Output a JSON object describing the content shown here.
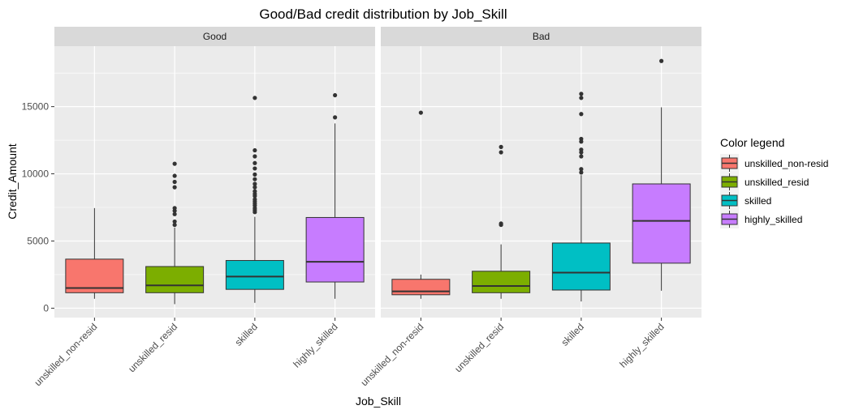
{
  "chart_data": {
    "type": "box",
    "title": "Good/Bad credit distribution by Job_Skill",
    "xlabel": "Job_Skill",
    "ylabel": "Credit_Amount",
    "ylim": [
      -700,
      19500
    ],
    "y_ticks": [
      0,
      5000,
      10000,
      15000
    ],
    "categories": [
      "unskilled_non-resid",
      "unskilled_resid",
      "skilled",
      "highly_skilled"
    ],
    "colors": [
      "#F8766D",
      "#7CAE00",
      "#00BFC4",
      "#C77CFF"
    ],
    "legend": {
      "title": "Color legend",
      "position": "right",
      "items": [
        "unskilled_non-resid",
        "unskilled_resid",
        "skilled",
        "highly_skilled"
      ]
    },
    "grid": true,
    "facets": [
      {
        "label": "Good",
        "boxes": [
          {
            "min": 700,
            "q1": 1150,
            "median": 1500,
            "q3": 3650,
            "max": 7450,
            "outliers": []
          },
          {
            "min": 300,
            "q1": 1150,
            "median": 1700,
            "q3": 3100,
            "max": 6000,
            "outliers": [
              6200,
              6450,
              7000,
              7250,
              7450,
              9000,
              9400,
              9850,
              10750
            ]
          },
          {
            "min": 400,
            "q1": 1400,
            "median": 2350,
            "q3": 3550,
            "max": 6800,
            "outliers": [
              7150,
              7300,
              7450,
              7650,
              7800,
              7950,
              8100,
              8350,
              8500,
              8700,
              9000,
              9250,
              9600,
              9950,
              10400,
              10800,
              11300,
              11750,
              15650
            ]
          },
          {
            "min": 700,
            "q1": 1950,
            "median": 3450,
            "q3": 6750,
            "max": 13750,
            "outliers": [
              14200,
              15850
            ]
          }
        ]
      },
      {
        "label": "Bad",
        "boxes": [
          {
            "min": 700,
            "q1": 1000,
            "median": 1250,
            "q3": 2150,
            "max": 2500,
            "outliers": [
              14550
            ]
          },
          {
            "min": 700,
            "q1": 1150,
            "median": 1650,
            "q3": 2750,
            "max": 4750,
            "outliers": [
              6200,
              6300,
              11600,
              12000
            ]
          },
          {
            "min": 500,
            "q1": 1350,
            "median": 2650,
            "q3": 4850,
            "max": 9900,
            "outliers": [
              10100,
              10350,
              11300,
              11600,
              11800,
              12400,
              12600,
              14450,
              15650,
              15950
            ]
          },
          {
            "min": 1300,
            "q1": 3350,
            "median": 6500,
            "q3": 9250,
            "max": 14950,
            "outliers": [
              18400
            ]
          }
        ]
      }
    ]
  }
}
